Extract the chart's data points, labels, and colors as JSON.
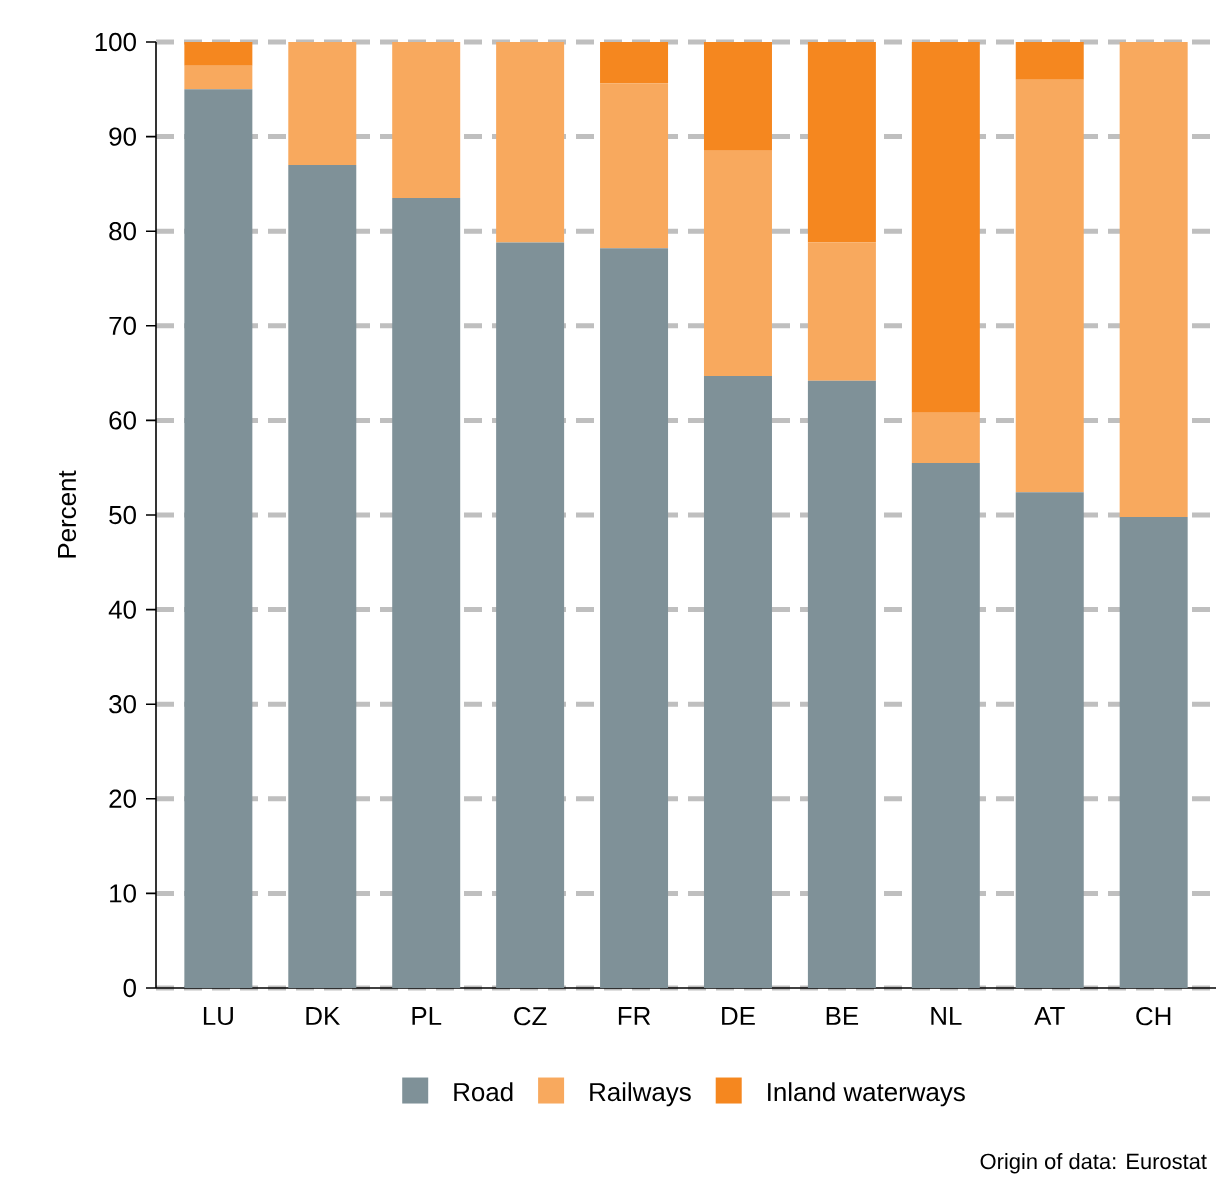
{
  "chart_data": {
    "type": "bar",
    "stacked": true,
    "ylabel": "Percent",
    "categories": [
      "LU",
      "DK",
      "PL",
      "CZ",
      "FR",
      "DE",
      "BE",
      "NL",
      "AT",
      "CH"
    ],
    "series": [
      {
        "name": "Road",
        "color": "#7f9198",
        "values": [
          95,
          87,
          83.5,
          78.8,
          78.2,
          64.7,
          64.2,
          55.5,
          52.4,
          49.8
        ]
      },
      {
        "name": "Railways",
        "color": "#f8a95e",
        "values": [
          2.5,
          13,
          16.5,
          21.2,
          17.4,
          23.8,
          14.6,
          5.3,
          43.6,
          50.2
        ]
      },
      {
        "name": "Inland waterways",
        "color": "#f5871f",
        "values": [
          2.5,
          0,
          0,
          0,
          4.4,
          11.5,
          21.2,
          39.2,
          4,
          0
        ]
      }
    ],
    "ylim": [
      0,
      100
    ],
    "yticks": [
      0,
      10,
      20,
      30,
      40,
      50,
      60,
      70,
      80,
      90,
      100
    ],
    "grid": "y",
    "legend": "bottom",
    "annotations": [
      "Origin of data: Eurostat"
    ]
  }
}
